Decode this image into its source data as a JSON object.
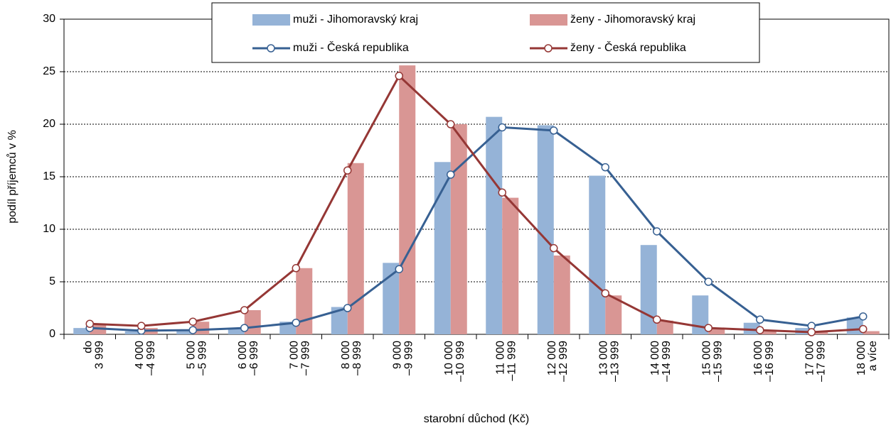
{
  "chart_data": {
    "type": "bar_line",
    "xlabel": "starobní důchod (Kč)",
    "ylabel": "podíl příjemců v %",
    "categories": [
      [
        "do",
        "3 999"
      ],
      [
        "4 000",
        "–4 999"
      ],
      [
        "5 000",
        "–5 999"
      ],
      [
        "6 000",
        "–6 999"
      ],
      [
        "7 000",
        "–7 999"
      ],
      [
        "8 000",
        "–8 999"
      ],
      [
        "9 000",
        "–9 999"
      ],
      [
        "10 000",
        "–10 999"
      ],
      [
        "11 000",
        "–11 999"
      ],
      [
        "12 000",
        "–12 999"
      ],
      [
        "13 000",
        "–13 999"
      ],
      [
        "14 000",
        "–14 999"
      ],
      [
        "15 000",
        "–15 999"
      ],
      [
        "16 000",
        "–16 999"
      ],
      [
        "17 000",
        "–17 999"
      ],
      [
        "18 000",
        "a více"
      ]
    ],
    "series": [
      {
        "name": "muži - Jihomoravský kraj",
        "kind": "bar",
        "color": "#95b3d7",
        "values": [
          0.6,
          0.3,
          0.4,
          0.6,
          1.2,
          2.6,
          6.8,
          16.4,
          20.7,
          19.9,
          15.1,
          8.5,
          3.7,
          1.1,
          0.6,
          1.6
        ]
      },
      {
        "name": "ženy - Jihomoravský kraj",
        "kind": "bar",
        "color": "#d99694",
        "values": [
          0.9,
          0.6,
          1.2,
          2.3,
          6.3,
          16.3,
          25.6,
          20.0,
          13.0,
          7.5,
          3.7,
          1.3,
          0.6,
          0.3,
          0.2,
          0.3
        ]
      },
      {
        "name": "muži - Česká republika",
        "kind": "line",
        "color": "#376092",
        "values": [
          0.6,
          0.35,
          0.4,
          0.6,
          1.1,
          2.5,
          6.2,
          15.2,
          19.7,
          19.4,
          15.9,
          9.8,
          5.0,
          1.4,
          0.8,
          1.7
        ]
      },
      {
        "name": "ženy - Česká republika",
        "kind": "line",
        "color": "#953735",
        "values": [
          1.0,
          0.8,
          1.2,
          2.3,
          6.3,
          15.6,
          24.6,
          20.0,
          13.5,
          8.2,
          3.9,
          1.4,
          0.6,
          0.4,
          0.2,
          0.5
        ]
      }
    ],
    "ylim": [
      0,
      30
    ],
    "yticks": [
      0,
      5,
      10,
      15,
      20,
      25,
      30
    ],
    "grid": true
  }
}
